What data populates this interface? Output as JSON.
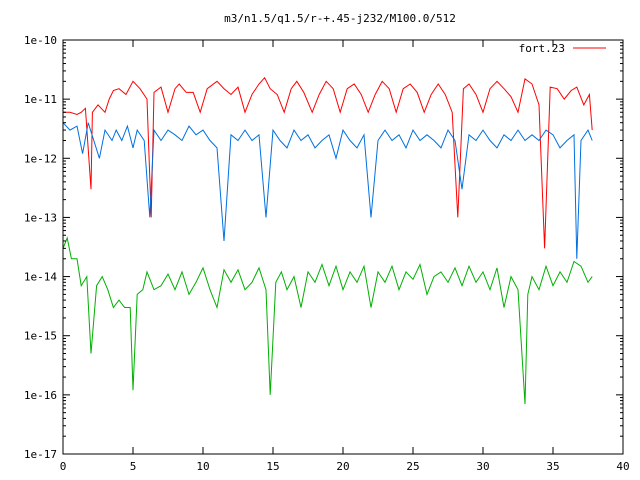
{
  "chart_data": {
    "type": "line",
    "title": "m3/n1.5/q1.5/r-+.45-j232/M100.0/512",
    "xlabel": "",
    "ylabel": "",
    "xlim": [
      0,
      40
    ],
    "ylim": [
      1e-17,
      1e-10
    ],
    "yscale": "log",
    "x_ticks": [
      "0",
      "5",
      "10",
      "15",
      "20",
      "25",
      "30",
      "35",
      "40"
    ],
    "y_ticks": [
      "1e-17",
      "1e-16",
      "1e-15",
      "1e-14",
      "1e-13",
      "1e-12",
      "1e-11",
      "1e-10"
    ],
    "grid": false,
    "legend": "top-right",
    "series": [
      {
        "name": "fort.23",
        "color": "#ff0000",
        "x": [
          0,
          0.5,
          1.0,
          1.3,
          1.6,
          2.0,
          2.1,
          2.5,
          3.0,
          3.3,
          3.6,
          4.0,
          4.5,
          5.0,
          5.5,
          6.0,
          6.3,
          6.5,
          7.0,
          7.5,
          8.0,
          8.3,
          8.8,
          9.3,
          9.8,
          10.3,
          11.0,
          11.5,
          12.0,
          12.5,
          13.0,
          13.5,
          14.0,
          14.4,
          14.8,
          15.3,
          15.8,
          16.3,
          16.7,
          17.2,
          17.8,
          18.3,
          18.8,
          19.3,
          19.8,
          20.3,
          20.8,
          21.3,
          21.8,
          22.3,
          22.8,
          23.3,
          23.8,
          24.3,
          24.8,
          25.3,
          25.8,
          26.3,
          26.8,
          27.3,
          27.8,
          28.2,
          28.6,
          29.0,
          29.5,
          30.0,
          30.5,
          31.0,
          31.5,
          32.0,
          32.5,
          33.0,
          33.5,
          34.0,
          34.4,
          34.8,
          35.3,
          35.8,
          36.3,
          36.7,
          37.2,
          37.6,
          37.8
        ],
        "y": [
          6e-12,
          6e-12,
          5.5e-12,
          6e-12,
          7e-12,
          3e-13,
          6e-12,
          8e-12,
          6e-12,
          1e-11,
          1.4e-11,
          1.5e-11,
          1.2e-11,
          2e-11,
          1.5e-11,
          1e-11,
          1e-13,
          1.3e-11,
          1.6e-11,
          6e-12,
          1.5e-11,
          1.8e-11,
          1.3e-11,
          1.3e-11,
          6e-12,
          1.5e-11,
          2e-11,
          1.5e-11,
          1.2e-11,
          1.6e-11,
          6e-12,
          1.2e-11,
          1.8e-11,
          2.3e-11,
          1.5e-11,
          1.2e-11,
          6e-12,
          1.5e-11,
          2e-11,
          1.3e-11,
          6e-12,
          1.2e-11,
          2e-11,
          1.5e-11,
          6e-12,
          1.5e-11,
          1.8e-11,
          1.2e-11,
          6e-12,
          1.2e-11,
          2e-11,
          1.5e-11,
          6e-12,
          1.5e-11,
          1.8e-11,
          1.3e-11,
          6e-12,
          1.2e-11,
          1.8e-11,
          1.2e-11,
          6e-12,
          1e-13,
          1.5e-11,
          1.8e-11,
          1.2e-11,
          6e-12,
          1.5e-11,
          2e-11,
          1.5e-11,
          1.1e-11,
          6e-12,
          2.2e-11,
          1.8e-11,
          8e-12,
          3e-14,
          1.6e-11,
          1.5e-11,
          1e-11,
          1.4e-11,
          1.6e-11,
          8e-12,
          1.2e-11,
          3e-12
        ]
      },
      {
        "color": "#0070e0",
        "x": [
          0,
          0.5,
          1.0,
          1.4,
          1.8,
          2.2,
          2.6,
          3.0,
          3.5,
          3.8,
          4.2,
          4.6,
          5.0,
          5.3,
          5.8,
          6.2,
          6.5,
          7.0,
          7.5,
          8.0,
          8.5,
          9.0,
          9.5,
          10.0,
          10.5,
          11.0,
          11.5,
          12.0,
          12.5,
          13.0,
          13.5,
          14.0,
          14.5,
          15.0,
          15.5,
          16.0,
          16.5,
          17.0,
          17.5,
          18.0,
          18.5,
          19.0,
          19.5,
          20.0,
          20.5,
          21.0,
          21.5,
          22.0,
          22.5,
          23.0,
          23.5,
          24.0,
          24.5,
          25.0,
          25.5,
          26.0,
          26.5,
          27.0,
          27.5,
          28.0,
          28.5,
          29.0,
          29.5,
          30.0,
          30.5,
          31.0,
          31.5,
          32.0,
          32.5,
          33.0,
          33.5,
          34.0,
          34.5,
          35.0,
          35.5,
          36.0,
          36.5,
          36.7,
          37.0,
          37.5,
          37.8
        ],
        "y": [
          4e-12,
          3e-12,
          3.5e-12,
          1.2e-12,
          4e-12,
          2e-12,
          1e-12,
          3e-12,
          2e-12,
          3e-12,
          2e-12,
          3.5e-12,
          1.5e-12,
          3e-12,
          2e-12,
          1e-13,
          3e-12,
          2e-12,
          3e-12,
          2.5e-12,
          2e-12,
          3.5e-12,
          2.5e-12,
          3e-12,
          2e-12,
          1.5e-12,
          4e-14,
          2.5e-12,
          2e-12,
          3e-12,
          2e-12,
          2.5e-12,
          1e-13,
          3e-12,
          2e-12,
          1.5e-12,
          3e-12,
          2e-12,
          2.5e-12,
          1.5e-12,
          2e-12,
          2.5e-12,
          1e-12,
          3e-12,
          2e-12,
          1.5e-12,
          2.5e-12,
          1e-13,
          2e-12,
          3e-12,
          2e-12,
          2.5e-12,
          1.5e-12,
          3e-12,
          2e-12,
          2.5e-12,
          2e-12,
          1.5e-12,
          3e-12,
          2e-12,
          3e-13,
          2.5e-12,
          2e-12,
          3e-12,
          2e-12,
          1.5e-12,
          2.5e-12,
          2e-12,
          3e-12,
          2e-12,
          2.5e-12,
          2e-12,
          3e-12,
          2.5e-12,
          1.5e-12,
          2e-12,
          2.5e-12,
          2e-14,
          2e-12,
          3e-12,
          2e-12
        ]
      },
      {
        "color": "#00b000",
        "x": [
          0,
          0.3,
          0.6,
          1.0,
          1.3,
          1.7,
          2.0,
          2.4,
          2.8,
          3.2,
          3.6,
          4.0,
          4.4,
          4.8,
          5.0,
          5.3,
          5.7,
          6.0,
          6.5,
          7.0,
          7.5,
          8.0,
          8.5,
          9.0,
          9.5,
          10.0,
          10.5,
          11.0,
          11.5,
          12.0,
          12.5,
          13.0,
          13.5,
          14.0,
          14.5,
          14.8,
          15.2,
          15.6,
          16.0,
          16.5,
          17.0,
          17.5,
          18.0,
          18.5,
          19.0,
          19.5,
          20.0,
          20.5,
          21.0,
          21.5,
          22.0,
          22.5,
          23.0,
          23.5,
          24.0,
          24.5,
          25.0,
          25.5,
          26.0,
          26.5,
          27.0,
          27.5,
          28.0,
          28.5,
          29.0,
          29.5,
          30.0,
          30.5,
          31.0,
          31.5,
          32.0,
          32.5,
          33.0,
          33.2,
          33.5,
          34.0,
          34.5,
          35.0,
          35.5,
          36.0,
          36.5,
          37.0,
          37.5,
          37.8
        ],
        "y": [
          3e-14,
          4.5e-14,
          2e-14,
          2e-14,
          7e-15,
          1e-14,
          5e-16,
          7e-15,
          1e-14,
          6e-15,
          3e-15,
          4e-15,
          3e-15,
          3e-15,
          1.2e-16,
          5e-15,
          6e-15,
          1.2e-14,
          6e-15,
          7e-15,
          1.1e-14,
          6e-15,
          1.2e-14,
          5e-15,
          8e-15,
          1.4e-14,
          6e-15,
          3e-15,
          1.3e-14,
          8e-15,
          1.3e-14,
          6e-15,
          8e-15,
          1.4e-14,
          6e-15,
          1e-16,
          8e-15,
          1.2e-14,
          6e-15,
          1e-14,
          3e-15,
          1.2e-14,
          8e-15,
          1.6e-14,
          7e-15,
          1.5e-14,
          6e-15,
          1.2e-14,
          8e-15,
          1.5e-14,
          3e-15,
          1.2e-14,
          8e-15,
          1.5e-14,
          6e-15,
          1.2e-14,
          9e-15,
          1.6e-14,
          5e-15,
          1e-14,
          1.2e-14,
          8e-15,
          1.4e-14,
          7e-15,
          1.5e-14,
          8e-15,
          1.2e-14,
          6e-15,
          1.4e-14,
          3e-15,
          1e-14,
          6e-15,
          7e-17,
          5e-15,
          1e-14,
          6e-15,
          1.5e-14,
          7e-15,
          1.2e-14,
          8e-15,
          1.8e-14,
          1.5e-14,
          8e-15,
          1e-14
        ]
      }
    ]
  }
}
